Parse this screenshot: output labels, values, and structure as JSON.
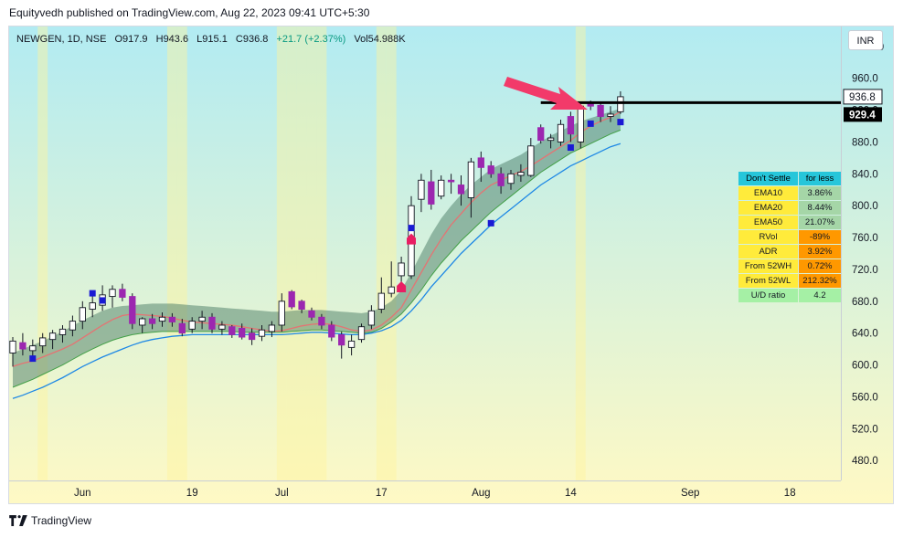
{
  "header": {
    "published": "Equityvedh published on TradingView.com, Aug 22, 2023 09:41 UTC+5:30"
  },
  "legend": {
    "symbol": "NEWGEN, 1D, NSE",
    "open": "O917.9",
    "high": "H943.6",
    "low": "L915.1",
    "close": "C936.8",
    "change": "+21.7 (+2.37%)",
    "volume": "Vol54.988K",
    "change_color": "#089981"
  },
  "currency_button": "INR",
  "price_labels": {
    "last": "936.8",
    "line": "929.4"
  },
  "colors": {
    "bg_top": "#b2ebf2",
    "bg_bottom": "#fff9c4",
    "candle_up_body": "#ffffff",
    "candle_down_body": "#9c27b0",
    "candle_outline": "#131722",
    "ema_fast": "#e57373",
    "ema_slow": "#1e88e5",
    "band": "#4a7c65",
    "marker_blue": "#1a1ad4",
    "marker_red": "#e91e63",
    "arrow": "#f23a6a",
    "level_line": "#000000"
  },
  "chart_data": {
    "type": "candlestick",
    "ylim": [
      455,
      1025
    ],
    "y_ticks": [
      480,
      520,
      560,
      600,
      640,
      680,
      720,
      760,
      800,
      840,
      880,
      920,
      960,
      1000
    ],
    "y_tick_labels": [
      "480.0",
      "520.0",
      "560.0",
      "600.0",
      "640.0",
      "680.0",
      "720.0",
      "760.0",
      "800.0",
      "840.0",
      "880.0",
      "920.0",
      "960.0",
      "1000.0"
    ],
    "x_ticks": [
      {
        "label": "Jun",
        "index": 7
      },
      {
        "label": "19",
        "index": 18
      },
      {
        "label": "Jul",
        "index": 27
      },
      {
        "label": "17",
        "index": 37
      },
      {
        "label": "Aug",
        "index": 47
      },
      {
        "label": "14",
        "index": 56
      },
      {
        "label": "Sep",
        "index": 68
      },
      {
        "label": "18",
        "index": 78
      }
    ],
    "candles": [
      {
        "o": 615,
        "h": 635,
        "l": 598,
        "c": 630
      },
      {
        "o": 628,
        "h": 640,
        "l": 612,
        "c": 620
      },
      {
        "o": 618,
        "h": 632,
        "l": 608,
        "c": 624
      },
      {
        "o": 624,
        "h": 640,
        "l": 615,
        "c": 634
      },
      {
        "o": 632,
        "h": 644,
        "l": 620,
        "c": 640
      },
      {
        "o": 638,
        "h": 650,
        "l": 628,
        "c": 645
      },
      {
        "o": 644,
        "h": 662,
        "l": 636,
        "c": 655
      },
      {
        "o": 655,
        "h": 680,
        "l": 645,
        "c": 672
      },
      {
        "o": 670,
        "h": 690,
        "l": 660,
        "c": 678
      },
      {
        "o": 675,
        "h": 700,
        "l": 668,
        "c": 688
      },
      {
        "o": 686,
        "h": 700,
        "l": 672,
        "c": 695
      },
      {
        "o": 695,
        "h": 702,
        "l": 680,
        "c": 685
      },
      {
        "o": 686,
        "h": 690,
        "l": 645,
        "c": 652
      },
      {
        "o": 650,
        "h": 660,
        "l": 640,
        "c": 658
      },
      {
        "o": 658,
        "h": 664,
        "l": 645,
        "c": 652
      },
      {
        "o": 655,
        "h": 666,
        "l": 648,
        "c": 660
      },
      {
        "o": 660,
        "h": 665,
        "l": 648,
        "c": 654
      },
      {
        "o": 652,
        "h": 658,
        "l": 636,
        "c": 640
      },
      {
        "o": 645,
        "h": 660,
        "l": 640,
        "c": 655
      },
      {
        "o": 655,
        "h": 668,
        "l": 645,
        "c": 660
      },
      {
        "o": 660,
        "h": 665,
        "l": 640,
        "c": 645
      },
      {
        "o": 645,
        "h": 655,
        "l": 638,
        "c": 650
      },
      {
        "o": 648,
        "h": 650,
        "l": 634,
        "c": 638
      },
      {
        "o": 646,
        "h": 652,
        "l": 632,
        "c": 635
      },
      {
        "o": 640,
        "h": 646,
        "l": 625,
        "c": 632
      },
      {
        "o": 636,
        "h": 650,
        "l": 630,
        "c": 644
      },
      {
        "o": 642,
        "h": 655,
        "l": 635,
        "c": 650
      },
      {
        "o": 650,
        "h": 690,
        "l": 642,
        "c": 680
      },
      {
        "o": 692,
        "h": 694,
        "l": 670,
        "c": 673
      },
      {
        "o": 680,
        "h": 682,
        "l": 665,
        "c": 670
      },
      {
        "o": 668,
        "h": 672,
        "l": 656,
        "c": 660
      },
      {
        "o": 660,
        "h": 664,
        "l": 645,
        "c": 650
      },
      {
        "o": 650,
        "h": 655,
        "l": 630,
        "c": 635
      },
      {
        "o": 638,
        "h": 642,
        "l": 608,
        "c": 625
      },
      {
        "o": 622,
        "h": 638,
        "l": 612,
        "c": 630
      },
      {
        "o": 632,
        "h": 652,
        "l": 628,
        "c": 648
      },
      {
        "o": 650,
        "h": 675,
        "l": 645,
        "c": 668
      },
      {
        "o": 670,
        "h": 710,
        "l": 665,
        "c": 690
      },
      {
        "o": 690,
        "h": 730,
        "l": 685,
        "c": 698
      },
      {
        "o": 712,
        "h": 736,
        "l": 692,
        "c": 728
      },
      {
        "o": 712,
        "h": 812,
        "l": 708,
        "c": 800
      },
      {
        "o": 808,
        "h": 840,
        "l": 792,
        "c": 832
      },
      {
        "o": 830,
        "h": 845,
        "l": 795,
        "c": 802
      },
      {
        "o": 812,
        "h": 838,
        "l": 808,
        "c": 832
      },
      {
        "o": 832,
        "h": 840,
        "l": 815,
        "c": 830
      },
      {
        "o": 826,
        "h": 838,
        "l": 800,
        "c": 815
      },
      {
        "o": 810,
        "h": 860,
        "l": 785,
        "c": 855
      },
      {
        "o": 860,
        "h": 868,
        "l": 830,
        "c": 848
      },
      {
        "o": 850,
        "h": 856,
        "l": 835,
        "c": 840
      },
      {
        "o": 840,
        "h": 848,
        "l": 815,
        "c": 825
      },
      {
        "o": 828,
        "h": 845,
        "l": 820,
        "c": 840
      },
      {
        "o": 838,
        "h": 852,
        "l": 830,
        "c": 842
      },
      {
        "o": 838,
        "h": 885,
        "l": 836,
        "c": 875
      },
      {
        "o": 898,
        "h": 902,
        "l": 878,
        "c": 882
      },
      {
        "o": 882,
        "h": 890,
        "l": 872,
        "c": 885
      },
      {
        "o": 880,
        "h": 908,
        "l": 875,
        "c": 902
      },
      {
        "o": 912,
        "h": 918,
        "l": 880,
        "c": 890
      },
      {
        "o": 880,
        "h": 930,
        "l": 872,
        "c": 925
      },
      {
        "o": 928,
        "h": 932,
        "l": 920,
        "c": 925
      },
      {
        "o": 926,
        "h": 930,
        "l": 905,
        "c": 912
      },
      {
        "o": 912,
        "h": 925,
        "l": 905,
        "c": 915
      },
      {
        "o": 917.9,
        "h": 943.6,
        "l": 915.1,
        "c": 936.8
      }
    ],
    "ema_fast": [
      598,
      602,
      605,
      610,
      615,
      620,
      626,
      634,
      642,
      650,
      657,
      662,
      664,
      663,
      662,
      661,
      659,
      656,
      654,
      653,
      652,
      651,
      650,
      648,
      646,
      644,
      642,
      643,
      646,
      649,
      651,
      652,
      651,
      648,
      644,
      642,
      644,
      650,
      660,
      672,
      694,
      716,
      738,
      758,
      776,
      790,
      804,
      816,
      826,
      832,
      838,
      843,
      850,
      858,
      866,
      874,
      882,
      892,
      900,
      906,
      911,
      918
    ],
    "ema_slow": [
      558,
      562,
      567,
      572,
      578,
      584,
      591,
      598,
      604,
      610,
      615,
      620,
      625,
      629,
      632,
      634,
      636,
      637,
      638,
      638,
      638,
      638,
      638,
      638,
      638,
      638,
      638,
      638,
      639,
      640,
      641,
      641,
      640,
      639,
      638,
      638,
      640,
      643,
      648,
      656,
      668,
      682,
      698,
      712,
      726,
      740,
      752,
      764,
      776,
      786,
      796,
      806,
      816,
      826,
      834,
      842,
      850,
      856,
      862,
      868,
      874,
      878
    ],
    "band_high": [
      615,
      620,
      625,
      630,
      636,
      642,
      649,
      656,
      662,
      668,
      672,
      674,
      675,
      676,
      677,
      677,
      677,
      676,
      675,
      674,
      673,
      672,
      671,
      670,
      669,
      668,
      667,
      667,
      668,
      669,
      669,
      669,
      668,
      667,
      666,
      665,
      667,
      672,
      680,
      694,
      716,
      740,
      764,
      784,
      800,
      814,
      826,
      836,
      846,
      852,
      858,
      864,
      872,
      880,
      888,
      894,
      900,
      906,
      910,
      914,
      918,
      922
    ],
    "band_low": [
      572,
      577,
      582,
      588,
      594,
      600,
      607,
      614,
      620,
      626,
      631,
      635,
      638,
      640,
      641,
      642,
      642,
      642,
      642,
      642,
      642,
      642,
      642,
      641,
      641,
      641,
      641,
      641,
      642,
      643,
      644,
      644,
      643,
      642,
      641,
      640,
      641,
      646,
      654,
      664,
      678,
      694,
      712,
      728,
      742,
      756,
      768,
      780,
      792,
      802,
      812,
      822,
      832,
      842,
      850,
      858,
      866,
      872,
      878,
      884,
      890,
      895
    ],
    "markers": [
      {
        "index": 2,
        "shape": "square",
        "color": "blue",
        "price": 608
      },
      {
        "index": 8,
        "shape": "square",
        "color": "blue",
        "price": 690
      },
      {
        "index": 9,
        "shape": "square",
        "color": "blue",
        "price": 681
      },
      {
        "index": 40,
        "shape": "square",
        "color": "blue",
        "price": 772
      },
      {
        "index": 48,
        "shape": "square",
        "color": "blue",
        "price": 778
      },
      {
        "index": 56,
        "shape": "square",
        "color": "blue",
        "price": 873
      },
      {
        "index": 58,
        "shape": "square",
        "color": "blue",
        "price": 903
      },
      {
        "index": 61,
        "shape": "square",
        "color": "blue",
        "price": 905
      },
      {
        "index": 39,
        "shape": "up-arrow",
        "color": "red",
        "price": 697
      },
      {
        "index": 40,
        "shape": "up-arrow",
        "color": "red",
        "price": 757
      }
    ],
    "highlight_bars": [
      3,
      16,
      17,
      27,
      28,
      29,
      30,
      31,
      37,
      38,
      57
    ],
    "level_line": {
      "price": 929.4,
      "from_index": 53
    }
  },
  "stats_table": {
    "header": {
      "left": "Don't Settle",
      "right": "for less"
    },
    "rows": [
      {
        "label": "EMA10",
        "value": "3.86%",
        "label_bg": "#ffeb3b",
        "value_bg": "#a5d6a7"
      },
      {
        "label": "EMA20",
        "value": "8.44%",
        "label_bg": "#ffeb3b",
        "value_bg": "#a5d6a7"
      },
      {
        "label": "EMA50",
        "value": "21.07%",
        "label_bg": "#ffeb3b",
        "value_bg": "#a5d6a7"
      },
      {
        "label": "RVol",
        "value": "-89%",
        "label_bg": "#ffeb3b",
        "value_bg": "#ff9800"
      },
      {
        "label": "ADR",
        "value": "3.92%",
        "label_bg": "#ffeb3b",
        "value_bg": "#ff9800"
      },
      {
        "label": "From 52WH",
        "value": "0.72%",
        "label_bg": "#ffeb3b",
        "value_bg": "#ff9800"
      },
      {
        "label": "From 52WL",
        "value": "212.32%",
        "label_bg": "#ffeb3b",
        "value_bg": "#ff9800"
      },
      {
        "label": "U/D ratio",
        "value": "4.2",
        "label_bg": "#a5f0a5",
        "value_bg": "#a5f0a5"
      }
    ]
  },
  "footer": {
    "brand": "TradingView"
  }
}
